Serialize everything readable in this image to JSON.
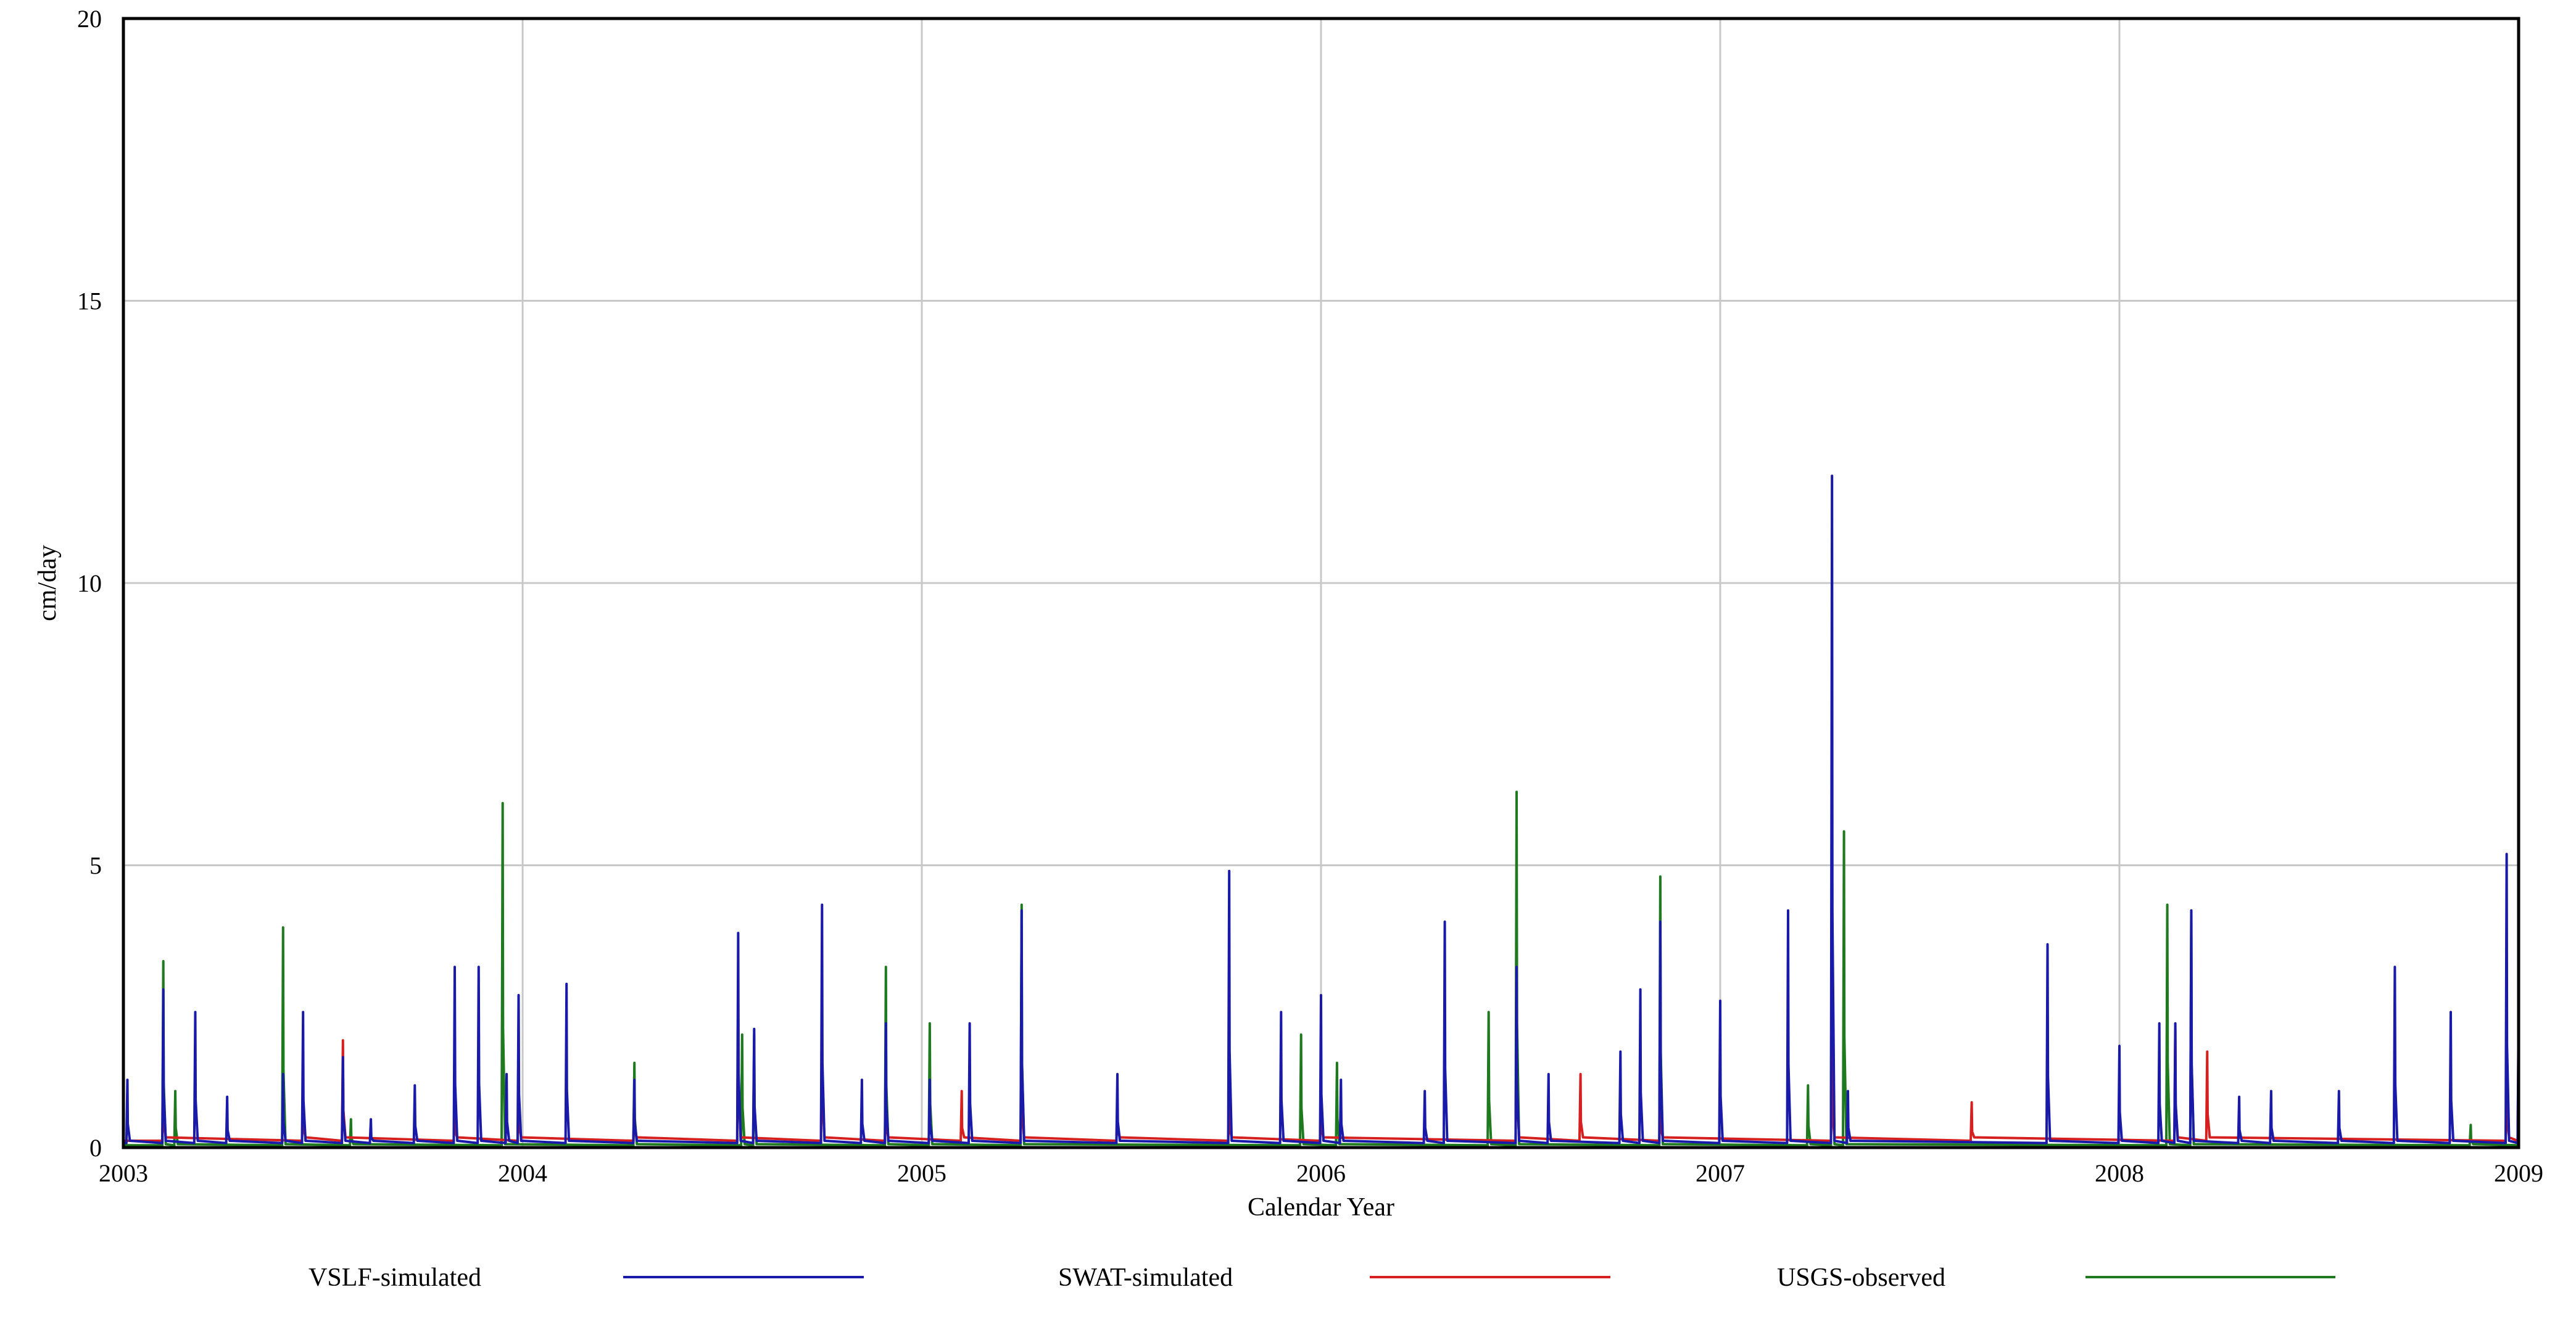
{
  "chart_data": {
    "type": "line",
    "title": "",
    "xlabel": "Calendar Year",
    "ylabel": "cm/day",
    "xlim": [
      2003,
      2009
    ],
    "ylim": [
      0,
      20
    ],
    "x_ticks": [
      "2003",
      "2004",
      "2005",
      "2006",
      "2007",
      "2008",
      "2009"
    ],
    "y_ticks": [
      "0",
      "5",
      "10",
      "15",
      "20"
    ],
    "grid": true,
    "legend_position": "bottom",
    "series": [
      {
        "name": "VSLF-simulated",
        "color": "#1a1aa8",
        "baseline": 0.08,
        "peaks": [
          {
            "x": 2003.01,
            "y": 1.2
          },
          {
            "x": 2003.1,
            "y": 2.8
          },
          {
            "x": 2003.18,
            "y": 2.4
          },
          {
            "x": 2003.26,
            "y": 0.9
          },
          {
            "x": 2003.4,
            "y": 1.3
          },
          {
            "x": 2003.45,
            "y": 2.4
          },
          {
            "x": 2003.55,
            "y": 1.6
          },
          {
            "x": 2003.62,
            "y": 0.5
          },
          {
            "x": 2003.73,
            "y": 1.1
          },
          {
            "x": 2003.83,
            "y": 3.2
          },
          {
            "x": 2003.89,
            "y": 3.2
          },
          {
            "x": 2003.96,
            "y": 1.3
          },
          {
            "x": 2003.99,
            "y": 2.7
          },
          {
            "x": 2004.11,
            "y": 2.9
          },
          {
            "x": 2004.28,
            "y": 1.2
          },
          {
            "x": 2004.54,
            "y": 3.8
          },
          {
            "x": 2004.58,
            "y": 2.1
          },
          {
            "x": 2004.75,
            "y": 4.3
          },
          {
            "x": 2004.85,
            "y": 1.2
          },
          {
            "x": 2004.91,
            "y": 2.2
          },
          {
            "x": 2005.02,
            "y": 1.2
          },
          {
            "x": 2005.12,
            "y": 2.2
          },
          {
            "x": 2005.25,
            "y": 4.2
          },
          {
            "x": 2005.49,
            "y": 1.3
          },
          {
            "x": 2005.77,
            "y": 4.9
          },
          {
            "x": 2005.9,
            "y": 2.4
          },
          {
            "x": 2006.0,
            "y": 2.7
          },
          {
            "x": 2006.05,
            "y": 1.2
          },
          {
            "x": 2006.26,
            "y": 1.0
          },
          {
            "x": 2006.31,
            "y": 4.0
          },
          {
            "x": 2006.49,
            "y": 3.2
          },
          {
            "x": 2006.57,
            "y": 1.3
          },
          {
            "x": 2006.75,
            "y": 1.7
          },
          {
            "x": 2006.8,
            "y": 2.8
          },
          {
            "x": 2006.85,
            "y": 4.0
          },
          {
            "x": 2007.0,
            "y": 2.6
          },
          {
            "x": 2007.17,
            "y": 4.2
          },
          {
            "x": 2007.28,
            "y": 11.9
          },
          {
            "x": 2007.32,
            "y": 1.0
          },
          {
            "x": 2007.82,
            "y": 3.6
          },
          {
            "x": 2008.0,
            "y": 1.8
          },
          {
            "x": 2008.1,
            "y": 2.2
          },
          {
            "x": 2008.14,
            "y": 2.2
          },
          {
            "x": 2008.18,
            "y": 4.2
          },
          {
            "x": 2008.3,
            "y": 0.9
          },
          {
            "x": 2008.38,
            "y": 1.0
          },
          {
            "x": 2008.55,
            "y": 1.0
          },
          {
            "x": 2008.69,
            "y": 3.2
          },
          {
            "x": 2008.83,
            "y": 2.4
          },
          {
            "x": 2008.97,
            "y": 5.2
          },
          {
            "x": 2009.0,
            "y": 2.5
          }
        ]
      },
      {
        "name": "SWAT-simulated",
        "color": "#d62020",
        "baseline": 0.12,
        "peaks": [
          {
            "x": 2003.1,
            "y": 1.3
          },
          {
            "x": 2003.45,
            "y": 1.0
          },
          {
            "x": 2003.55,
            "y": 1.9
          },
          {
            "x": 2003.83,
            "y": 0.8
          },
          {
            "x": 2003.99,
            "y": 1.1
          },
          {
            "x": 2004.28,
            "y": 0.8
          },
          {
            "x": 2004.54,
            "y": 2.9
          },
          {
            "x": 2004.75,
            "y": 2.5
          },
          {
            "x": 2004.91,
            "y": 1.0
          },
          {
            "x": 2005.1,
            "y": 1.0
          },
          {
            "x": 2005.25,
            "y": 1.8
          },
          {
            "x": 2005.49,
            "y": 0.8
          },
          {
            "x": 2005.77,
            "y": 1.0
          },
          {
            "x": 2006.0,
            "y": 0.9
          },
          {
            "x": 2006.49,
            "y": 2.7
          },
          {
            "x": 2006.65,
            "y": 1.3
          },
          {
            "x": 2006.85,
            "y": 1.0
          },
          {
            "x": 2007.28,
            "y": 1.8
          },
          {
            "x": 2007.63,
            "y": 0.8
          },
          {
            "x": 2008.14,
            "y": 2.1
          },
          {
            "x": 2008.22,
            "y": 1.7
          },
          {
            "x": 2008.97,
            "y": 1.3
          },
          {
            "x": 2009.0,
            "y": 2.2
          }
        ]
      },
      {
        "name": "USGS-observed",
        "color": "#1f7a1f",
        "baseline": 0.04,
        "peaks": [
          {
            "x": 2003.1,
            "y": 3.3
          },
          {
            "x": 2003.13,
            "y": 1.0
          },
          {
            "x": 2003.4,
            "y": 3.9
          },
          {
            "x": 2003.57,
            "y": 0.5
          },
          {
            "x": 2003.95,
            "y": 6.1
          },
          {
            "x": 2004.28,
            "y": 1.5
          },
          {
            "x": 2004.55,
            "y": 2.0
          },
          {
            "x": 2004.58,
            "y": 2.0
          },
          {
            "x": 2004.91,
            "y": 3.2
          },
          {
            "x": 2005.02,
            "y": 2.2
          },
          {
            "x": 2005.25,
            "y": 4.3
          },
          {
            "x": 2005.95,
            "y": 2.0
          },
          {
            "x": 2006.04,
            "y": 1.5
          },
          {
            "x": 2006.42,
            "y": 2.4
          },
          {
            "x": 2006.49,
            "y": 6.3
          },
          {
            "x": 2006.85,
            "y": 4.8
          },
          {
            "x": 2007.22,
            "y": 1.1
          },
          {
            "x": 2007.28,
            "y": 7.3
          },
          {
            "x": 2007.31,
            "y": 5.6
          },
          {
            "x": 2008.12,
            "y": 4.3
          },
          {
            "x": 2008.18,
            "y": 4.2
          },
          {
            "x": 2008.88,
            "y": 0.4
          }
        ]
      }
    ]
  }
}
